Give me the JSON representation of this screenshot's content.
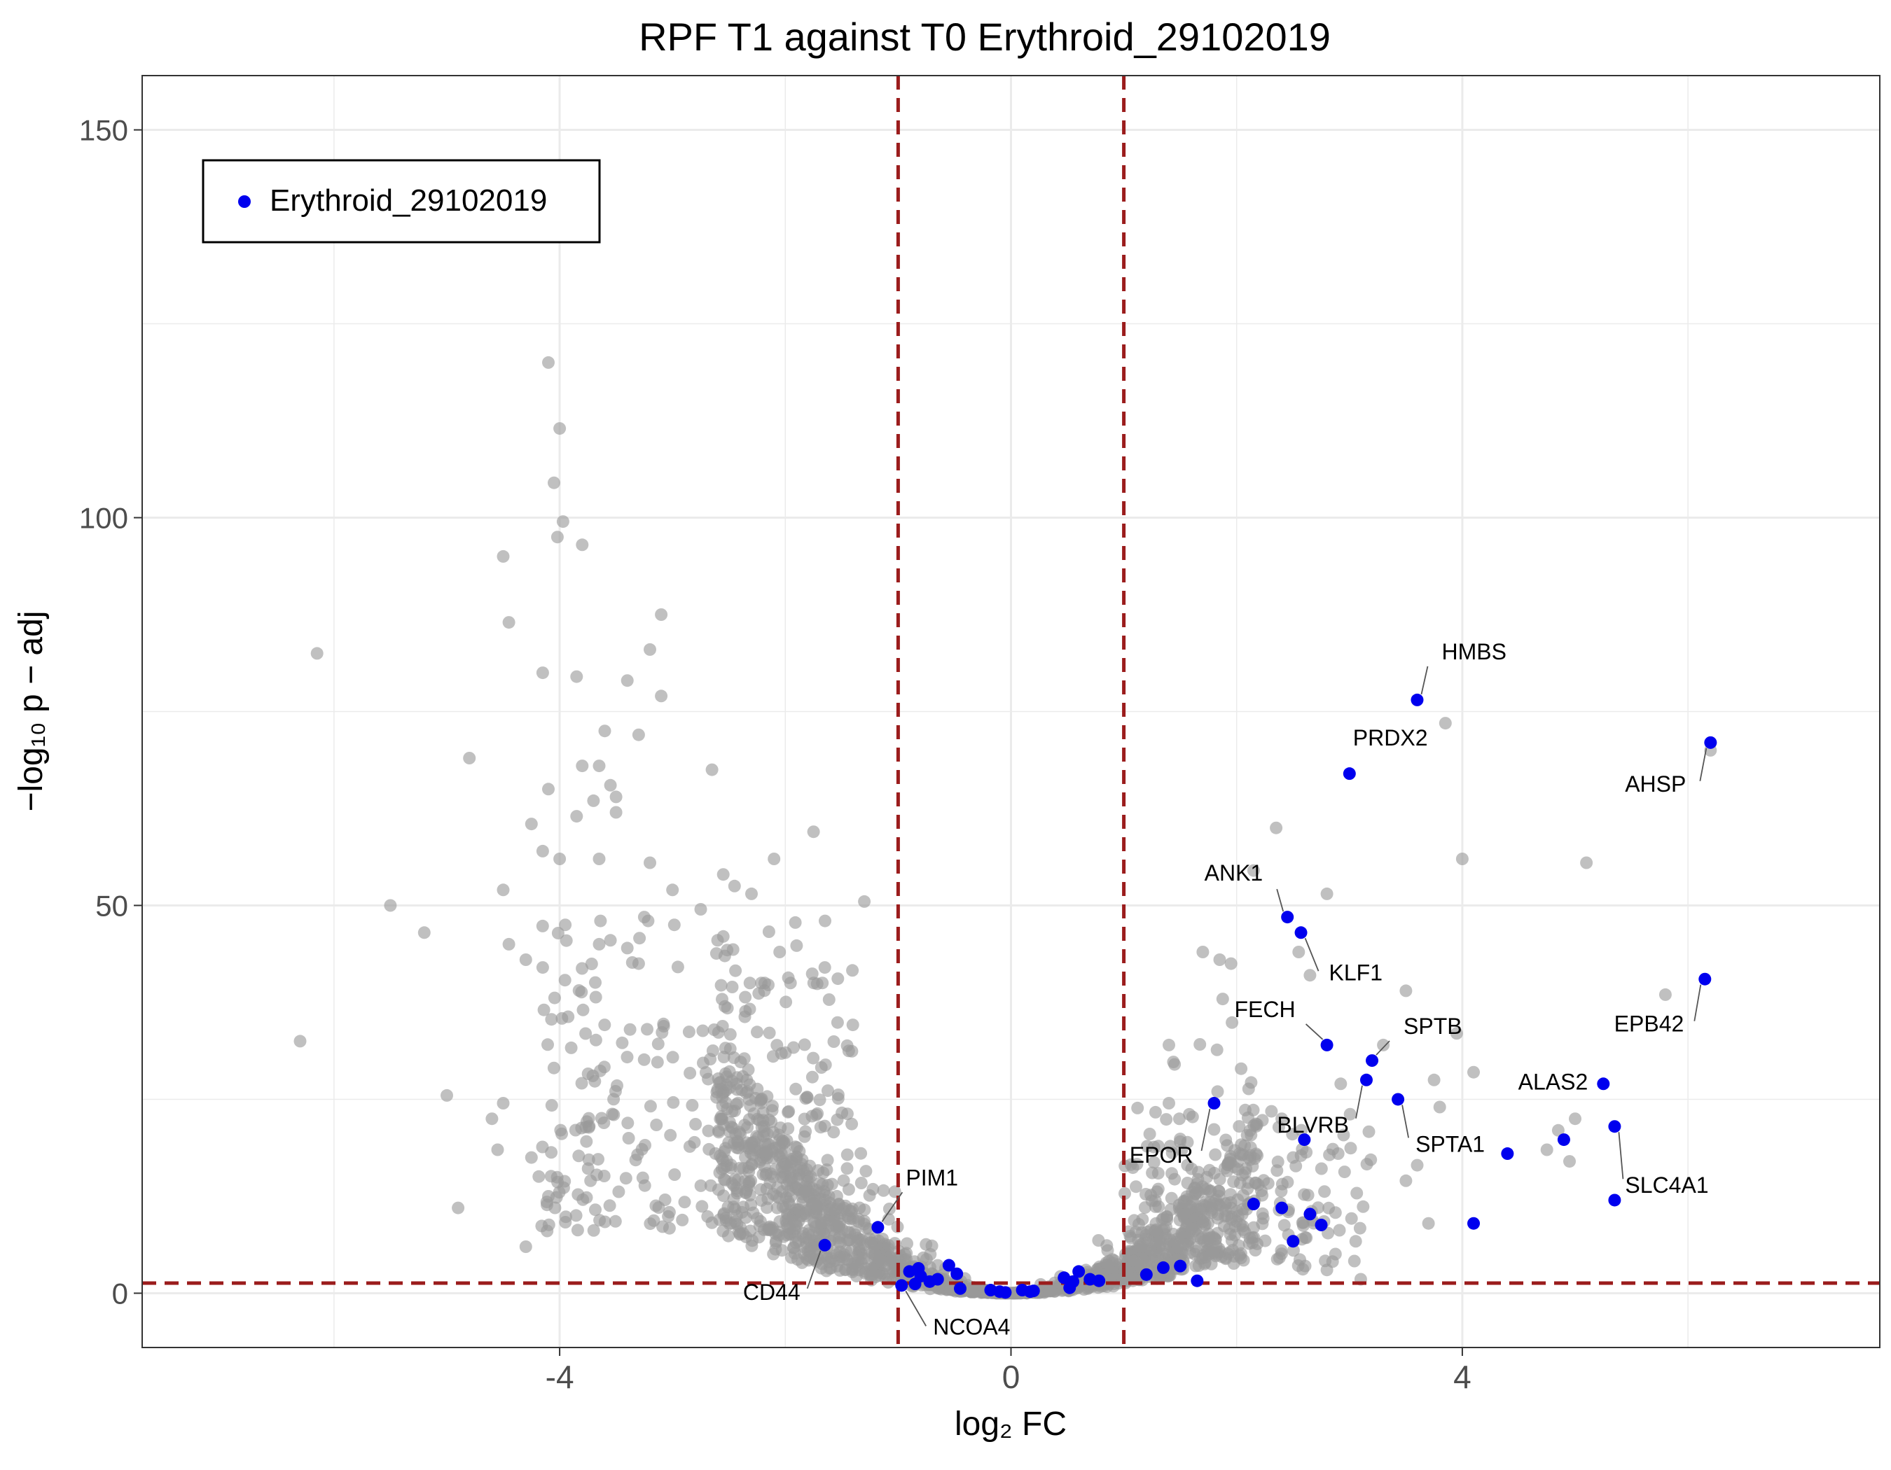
{
  "chart_data": {
    "type": "scatter",
    "title": "RPF T1 against T0 Erythroid_29102019",
    "xlabel": "log₂ FC",
    "ylabel": "−log₁₀ p − adj",
    "xlim": [
      -7.7,
      7.7
    ],
    "ylim": [
      -7,
      157
    ],
    "x_ticks": [
      -4,
      0,
      4
    ],
    "x_tick_labels": [
      "-4",
      "0",
      "4"
    ],
    "y_ticks": [
      0,
      50,
      100,
      150
    ],
    "y_tick_labels": [
      "0",
      "50",
      "100",
      "150"
    ],
    "grid": true,
    "thresholds": {
      "log2fc": [
        -1,
        1
      ],
      "padj_line": 1.3
    },
    "legend": {
      "position": "top-left",
      "entries": [
        {
          "name": "Erythroid_29102019",
          "color": "#0000ee"
        }
      ]
    },
    "colors": {
      "background_points": "#9a9a9a",
      "highlight": "#0000ee",
      "threshold_line": "#9b1c1c"
    },
    "highlighted_genes": [
      {
        "gene": "HMBS",
        "x": 3.6,
        "y": 76.5
      },
      {
        "gene": "PRDX2",
        "x": 3.0,
        "y": 67.0
      },
      {
        "gene": "AHSP",
        "x": 6.2,
        "y": 71.0
      },
      {
        "gene": "ANK1",
        "x": 2.45,
        "y": 48.5
      },
      {
        "gene": "KLF1",
        "x": 2.57,
        "y": 46.5
      },
      {
        "gene": "EPB42",
        "x": 6.15,
        "y": 40.5
      },
      {
        "gene": "FECH",
        "x": 2.8,
        "y": 32.0
      },
      {
        "gene": "SPTB",
        "x": 3.2,
        "y": 30.0
      },
      {
        "gene": "BLVRB",
        "x": 3.15,
        "y": 27.5
      },
      {
        "gene": "ALAS2",
        "x": 5.25,
        "y": 27.0
      },
      {
        "gene": "SPTA1",
        "x": 3.43,
        "y": 25.0
      },
      {
        "gene": "EPOR",
        "x": 1.8,
        "y": 24.5
      },
      {
        "gene": "SLC4A1",
        "x": 5.35,
        "y": 21.5
      },
      {
        "gene": "PIM1",
        "x": -1.18,
        "y": 8.5
      },
      {
        "gene": "CD44",
        "x": -1.65,
        "y": 6.2
      },
      {
        "gene": "NCOA4",
        "x": -0.97,
        "y": 1.0
      },
      {
        "gene": "",
        "x": 2.6,
        "y": 19.8
      },
      {
        "gene": "",
        "x": 4.9,
        "y": 19.8
      },
      {
        "gene": "",
        "x": 4.4,
        "y": 18.0
      },
      {
        "gene": "",
        "x": 5.35,
        "y": 12.0
      },
      {
        "gene": "",
        "x": 2.15,
        "y": 11.5
      },
      {
        "gene": "",
        "x": 2.4,
        "y": 11.0
      },
      {
        "gene": "",
        "x": 2.65,
        "y": 10.2
      },
      {
        "gene": "",
        "x": 2.75,
        "y": 8.8
      },
      {
        "gene": "",
        "x": 4.1,
        "y": 9.0
      },
      {
        "gene": "",
        "x": 2.5,
        "y": 6.7
      },
      {
        "gene": "",
        "x": 1.35,
        "y": 3.3
      },
      {
        "gene": "",
        "x": 1.5,
        "y": 3.5
      },
      {
        "gene": "",
        "x": 1.2,
        "y": 2.4
      },
      {
        "gene": "",
        "x": 1.65,
        "y": 1.6
      },
      {
        "gene": "",
        "x": 0.6,
        "y": 2.8
      },
      {
        "gene": "",
        "x": 0.55,
        "y": 1.5
      },
      {
        "gene": "",
        "x": 0.7,
        "y": 1.8
      },
      {
        "gene": "",
        "x": 0.78,
        "y": 1.6
      },
      {
        "gene": "",
        "x": 0.52,
        "y": 0.7
      },
      {
        "gene": "",
        "x": 0.47,
        "y": 2.0
      },
      {
        "gene": "",
        "x": 0.1,
        "y": 0.4
      },
      {
        "gene": "",
        "x": 0.17,
        "y": 0.2
      },
      {
        "gene": "",
        "x": 0.2,
        "y": 0.3
      },
      {
        "gene": "",
        "x": -0.1,
        "y": 0.2
      },
      {
        "gene": "",
        "x": -0.18,
        "y": 0.4
      },
      {
        "gene": "",
        "x": -0.05,
        "y": 0.1
      },
      {
        "gene": "",
        "x": -0.45,
        "y": 0.6
      },
      {
        "gene": "",
        "x": -0.48,
        "y": 2.5
      },
      {
        "gene": "",
        "x": -0.55,
        "y": 3.6
      },
      {
        "gene": "",
        "x": -0.65,
        "y": 1.8
      },
      {
        "gene": "",
        "x": -0.72,
        "y": 1.5
      },
      {
        "gene": "",
        "x": -0.8,
        "y": 2.2
      },
      {
        "gene": "",
        "x": -0.85,
        "y": 1.2
      },
      {
        "gene": "",
        "x": -0.9,
        "y": 2.8
      },
      {
        "gene": "",
        "x": -0.82,
        "y": 3.2
      }
    ],
    "other_genes_notable": [
      {
        "x": -4.1,
        "y": 120.0
      },
      {
        "x": -4.0,
        "y": 111.5
      },
      {
        "x": -4.05,
        "y": 104.5
      },
      {
        "x": -3.97,
        "y": 99.5
      },
      {
        "x": -4.02,
        "y": 97.5
      },
      {
        "x": -3.8,
        "y": 96.5
      },
      {
        "x": -4.5,
        "y": 95.0
      },
      {
        "x": -3.1,
        "y": 87.5
      },
      {
        "x": -4.45,
        "y": 86.5
      },
      {
        "x": -6.15,
        "y": 82.5
      },
      {
        "x": -3.2,
        "y": 83.0
      },
      {
        "x": -4.15,
        "y": 80.0
      },
      {
        "x": -3.85,
        "y": 79.5
      },
      {
        "x": -3.4,
        "y": 79.0
      },
      {
        "x": -3.1,
        "y": 77.0
      },
      {
        "x": -3.6,
        "y": 72.5
      },
      {
        "x": -3.3,
        "y": 72.0
      },
      {
        "x": -4.8,
        "y": 69.0
      },
      {
        "x": -3.65,
        "y": 68.0
      },
      {
        "x": -3.8,
        "y": 68.0
      },
      {
        "x": -2.65,
        "y": 67.5
      },
      {
        "x": -3.55,
        "y": 65.5
      },
      {
        "x": -4.1,
        "y": 65.0
      },
      {
        "x": -3.5,
        "y": 64.0
      },
      {
        "x": -3.7,
        "y": 63.5
      },
      {
        "x": -3.5,
        "y": 62.0
      },
      {
        "x": -3.85,
        "y": 61.5
      },
      {
        "x": -4.25,
        "y": 60.5
      },
      {
        "x": -1.75,
        "y": 59.5
      },
      {
        "x": -4.15,
        "y": 57.0
      },
      {
        "x": -4.0,
        "y": 56.0
      },
      {
        "x": -2.1,
        "y": 56.0
      },
      {
        "x": -3.65,
        "y": 56.0
      },
      {
        "x": -3.2,
        "y": 55.5
      },
      {
        "x": -2.55,
        "y": 54.0
      },
      {
        "x": -4.5,
        "y": 52.0
      },
      {
        "x": -3.0,
        "y": 52.0
      },
      {
        "x": -2.45,
        "y": 52.5
      },
      {
        "x": -2.3,
        "y": 51.5
      },
      {
        "x": -1.3,
        "y": 50.5
      },
      {
        "x": -5.5,
        "y": 50.0
      },
      {
        "x": -2.75,
        "y": 49.5
      },
      {
        "x": -3.25,
        "y": 48.5
      },
      {
        "x": -3.95,
        "y": 47.5
      },
      {
        "x": -5.2,
        "y": 46.5
      },
      {
        "x": -2.55,
        "y": 46.0
      },
      {
        "x": -3.55,
        "y": 45.5
      },
      {
        "x": -3.65,
        "y": 45.0
      },
      {
        "x": -2.6,
        "y": 45.5
      },
      {
        "x": -4.45,
        "y": 45.0
      },
      {
        "x": -3.4,
        "y": 44.5
      },
      {
        "x": -2.05,
        "y": 44.0
      },
      {
        "x": -4.3,
        "y": 43.0
      },
      {
        "x": -3.3,
        "y": 42.5
      },
      {
        "x": -4.15,
        "y": 42.0
      },
      {
        "x": -1.65,
        "y": 42.0
      },
      {
        "x": -6.3,
        "y": 32.5
      },
      {
        "x": -5.0,
        "y": 25.5
      },
      {
        "x": -4.5,
        "y": 24.5
      },
      {
        "x": -4.6,
        "y": 22.5
      },
      {
        "x": -4.55,
        "y": 18.5
      },
      {
        "x": -4.25,
        "y": 17.5
      },
      {
        "x": -4.9,
        "y": 11.0
      },
      {
        "x": -4.1,
        "y": 12.5
      },
      {
        "x": -4.3,
        "y": 6.0
      },
      {
        "x": 6.2,
        "y": 70.0
      },
      {
        "x": 5.8,
        "y": 38.5
      },
      {
        "x": 5.1,
        "y": 55.5
      },
      {
        "x": 4.0,
        "y": 56.0
      },
      {
        "x": 3.85,
        "y": 73.5
      },
      {
        "x": 2.35,
        "y": 60.0
      },
      {
        "x": 2.8,
        "y": 51.5
      },
      {
        "x": 2.15,
        "y": 54.5
      },
      {
        "x": 1.7,
        "y": 44.0
      },
      {
        "x": 1.85,
        "y": 43.0
      },
      {
        "x": 1.95,
        "y": 42.5
      },
      {
        "x": 2.55,
        "y": 44.0
      },
      {
        "x": 2.65,
        "y": 41.0
      },
      {
        "x": 3.5,
        "y": 39.0
      },
      {
        "x": 3.95,
        "y": 33.5
      },
      {
        "x": 3.3,
        "y": 32.0
      },
      {
        "x": 4.1,
        "y": 28.5
      },
      {
        "x": 3.75,
        "y": 27.5
      },
      {
        "x": 3.8,
        "y": 24.0
      },
      {
        "x": 5.0,
        "y": 22.5
      },
      {
        "x": 4.85,
        "y": 21.0
      },
      {
        "x": 4.75,
        "y": 18.5
      },
      {
        "x": 4.95,
        "y": 17.0
      },
      {
        "x": 3.6,
        "y": 16.5
      },
      {
        "x": 3.5,
        "y": 14.5
      },
      {
        "x": 3.7,
        "y": 9.0
      },
      {
        "x": 3.1,
        "y": 1.8
      },
      {
        "x": 2.8,
        "y": 3.0
      },
      {
        "x": 1.4,
        "y": 32.0
      },
      {
        "x": 1.45,
        "y": 29.5
      },
      {
        "x": 1.4,
        "y": 24.5
      },
      {
        "x": 2.4,
        "y": 22.5
      },
      {
        "x": 2.9,
        "y": 18.0
      },
      {
        "x": 2.5,
        "y": 17.5
      }
    ]
  }
}
